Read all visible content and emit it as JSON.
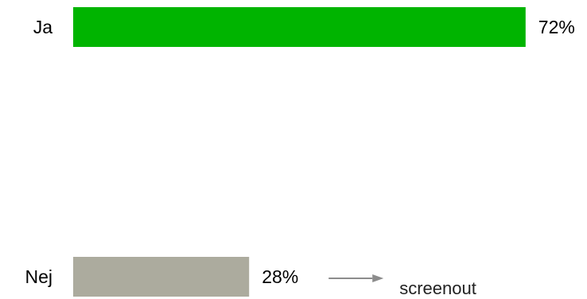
{
  "chart_data": {
    "type": "bar",
    "orientation": "horizontal",
    "categories": [
      "Ja",
      "Nej"
    ],
    "values": [
      72,
      28
    ],
    "value_labels": [
      "72%",
      "28%"
    ],
    "colors": [
      "#00b400",
      "#acab9e"
    ],
    "xlim": [
      0,
      100
    ],
    "grid": false,
    "legend": "none",
    "annotation": {
      "attached_to": "Nej",
      "text": "screenout",
      "arrow_color": "#8c8c8c"
    }
  }
}
